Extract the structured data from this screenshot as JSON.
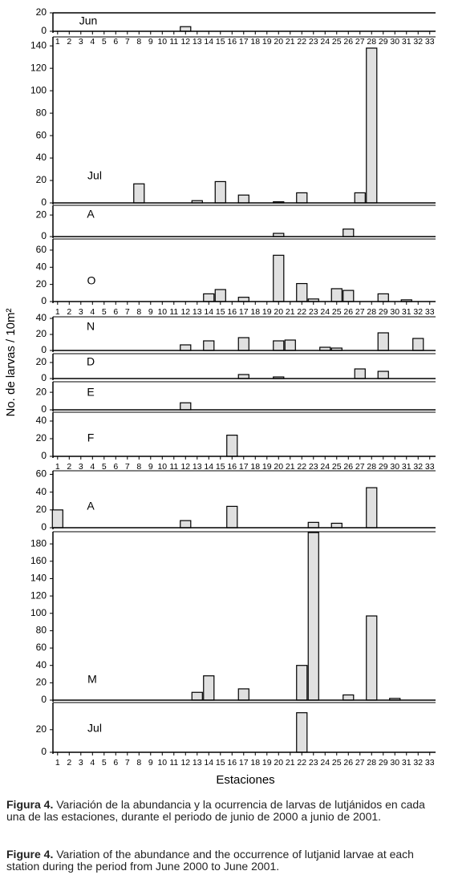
{
  "chart_data": [
    {
      "type": "bar",
      "label": "Jun",
      "x": [
        12
      ],
      "values": [
        5
      ],
      "xlim": [
        0.6,
        33.5
      ],
      "ylim": [
        0,
        20
      ],
      "yticks": [
        0,
        20
      ],
      "xticks": [
        1,
        2,
        3,
        4,
        5,
        6,
        7,
        8,
        9,
        10,
        11,
        12,
        13,
        14,
        15,
        16,
        17,
        18,
        19,
        20,
        21,
        22,
        23,
        24,
        25,
        26,
        27,
        28,
        29,
        30,
        31,
        32,
        33
      ],
      "color": "#e0e0e0"
    },
    {
      "type": "bar",
      "label": "Jul",
      "x": [
        8,
        13,
        15,
        17,
        20,
        22,
        27,
        28
      ],
      "values": [
        17,
        2,
        19,
        7,
        1,
        9,
        9,
        138
      ],
      "xlim": [
        0.6,
        33.5
      ],
      "ylim": [
        0,
        148
      ],
      "yticks": [
        0,
        20,
        40,
        60,
        80,
        100,
        120,
        140
      ],
      "color": "#e0e0e0"
    },
    {
      "type": "bar",
      "label": "A",
      "x": [
        20,
        26
      ],
      "values": [
        3,
        7
      ],
      "xlim": [
        0.6,
        33.5
      ],
      "ylim": [
        0,
        29
      ],
      "yticks": [
        0,
        20
      ],
      "color": "#e0e0e0"
    },
    {
      "type": "bar",
      "label": "O",
      "x": [
        14,
        15,
        17,
        20,
        22,
        23,
        25,
        26,
        29,
        31
      ],
      "values": [
        9,
        14,
        5,
        54,
        21,
        3,
        15,
        13,
        9,
        2
      ],
      "xlim": [
        0.6,
        33.5
      ],
      "ylim": [
        0,
        73
      ],
      "yticks": [
        0,
        20,
        40,
        60
      ],
      "xticks": [
        1,
        2,
        3,
        4,
        5,
        6,
        7,
        8,
        9,
        10,
        11,
        12,
        13,
        14,
        15,
        16,
        17,
        18,
        19,
        20,
        21,
        22,
        23,
        24,
        25,
        26,
        27,
        28,
        29,
        30,
        31,
        32,
        33
      ],
      "color": "#e0e0e0"
    },
    {
      "type": "bar",
      "label": "N",
      "x": [
        12,
        14,
        17,
        20,
        21,
        24,
        25,
        29,
        32
      ],
      "values": [
        7,
        12,
        16,
        12,
        13,
        4,
        3,
        22,
        15
      ],
      "xlim": [
        0.6,
        33.5
      ],
      "ylim": [
        0,
        42
      ],
      "yticks": [
        0,
        20,
        40
      ],
      "color": "#e0e0e0"
    },
    {
      "type": "bar",
      "label": "D",
      "x": [
        17,
        20,
        27,
        29
      ],
      "values": [
        5,
        2,
        12,
        9
      ],
      "xlim": [
        0.6,
        33.5
      ],
      "ylim": [
        0,
        31
      ],
      "yticks": [
        0,
        20
      ],
      "color": "#e0e0e0"
    },
    {
      "type": "bar",
      "label": "E",
      "x": [
        12
      ],
      "values": [
        8
      ],
      "xlim": [
        0.6,
        33.5
      ],
      "ylim": [
        0,
        32
      ],
      "yticks": [
        0,
        20
      ],
      "color": "#e0e0e0"
    },
    {
      "type": "bar",
      "label": "F",
      "x": [
        16
      ],
      "values": [
        24
      ],
      "xlim": [
        0.6,
        33.5
      ],
      "ylim": [
        0,
        50
      ],
      "yticks": [
        0,
        20,
        40
      ],
      "xticks": [
        1,
        2,
        3,
        4,
        5,
        6,
        7,
        8,
        9,
        10,
        11,
        12,
        13,
        14,
        15,
        16,
        17,
        18,
        19,
        20,
        21,
        22,
        23,
        24,
        25,
        26,
        27,
        28,
        29,
        30,
        31,
        32,
        33
      ],
      "color": "#e0e0e0"
    },
    {
      "type": "bar",
      "label": "A",
      "x": [
        1,
        12,
        16,
        23,
        25,
        28
      ],
      "values": [
        20,
        8,
        24,
        6,
        5,
        45
      ],
      "xlim": [
        0.6,
        33.5
      ],
      "ylim": [
        0,
        64
      ],
      "yticks": [
        0,
        20,
        40,
        60
      ],
      "color": "#e0e0e0"
    },
    {
      "type": "bar",
      "label": "M",
      "x": [
        13,
        14,
        17,
        22,
        23,
        26,
        28,
        30
      ],
      "values": [
        9,
        28,
        13,
        40,
        193,
        6,
        97,
        2
      ],
      "xlim": [
        0.6,
        33.5
      ],
      "ylim": [
        0,
        194
      ],
      "yticks": [
        0,
        20,
        40,
        60,
        80,
        100,
        120,
        140,
        160,
        180
      ],
      "color": "#e0e0e0"
    },
    {
      "type": "bar",
      "label": "Jul",
      "x": [
        22
      ],
      "values": [
        35
      ],
      "xlim": [
        0.6,
        33.5
      ],
      "ylim": [
        0,
        44
      ],
      "yticks": [
        0,
        20
      ],
      "xticks": [
        1,
        2,
        3,
        4,
        5,
        6,
        7,
        8,
        9,
        10,
        11,
        12,
        13,
        14,
        15,
        16,
        17,
        18,
        19,
        20,
        21,
        22,
        23,
        24,
        25,
        26,
        27,
        28,
        29,
        30,
        31,
        32,
        33
      ],
      "color": "#e0e0e0"
    }
  ],
  "ylabel": "No. de larvas / 10m²",
  "xlabel": "Estaciones",
  "captions": [
    {
      "label": "Figura 4.",
      "text": "Variación de la abundancia y la ocurrencia de larvas de lutjánidos en cada una de las estaciones, durante el periodo de junio de 2000 a junio de 2001."
    },
    {
      "label": "Figure 4.",
      "text": "Variation of the abundance and the occurrence of lutjanid larvae at each station during the period from June 2000 to June 2001."
    }
  ]
}
